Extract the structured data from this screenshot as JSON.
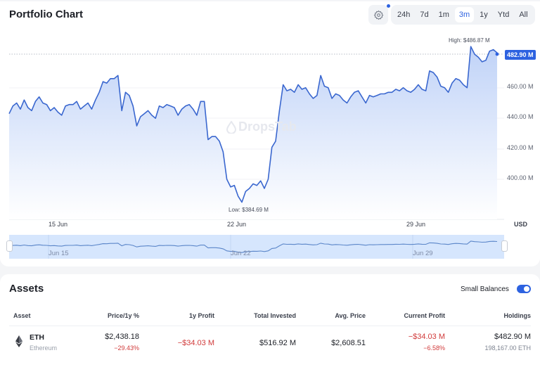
{
  "chart_card": {
    "title": "Portfolio Chart",
    "settings_icon": "gear-icon",
    "ranges": [
      "24h",
      "7d",
      "1m",
      "3m",
      "1y",
      "Ytd",
      "All"
    ],
    "active_range": "3m",
    "watermark": "DropsTab",
    "currency": "USD",
    "current_value_tag": "482.90 M",
    "high_label": "High: $486.87 M",
    "low_label": "Low: $384.69 M",
    "navigator_labels": [
      "Jun 15",
      "Jun 22",
      "Jun 29"
    ]
  },
  "chart_data": {
    "type": "area",
    "title": "Portfolio Chart",
    "xlabel": "",
    "ylabel": "USD",
    "x_tick_labels": [
      "15 Jun",
      "22 Jun",
      "29 Jun"
    ],
    "y_tick_labels": [
      "400.00 M",
      "420.00 M",
      "440.00 M",
      "460.00 M"
    ],
    "ylim": [
      380,
      490
    ],
    "grid": true,
    "legend": "none",
    "annotations": [
      "High: $486.87 M",
      "Low: $384.69 M",
      "482.90 M"
    ],
    "series": [
      {
        "name": "Portfolio value (M USD)",
        "x_approx_days": "≈ 11 Jun – 2 Jul",
        "values": [
          443,
          448,
          450,
          446,
          452,
          447,
          445,
          451,
          454,
          450,
          449,
          445,
          447,
          444,
          442,
          448,
          449,
          449,
          451,
          446,
          448,
          450,
          446,
          452,
          457,
          464,
          463,
          466,
          466,
          468,
          445,
          457,
          455,
          448,
          435,
          441,
          443,
          445,
          442,
          440,
          448,
          447,
          449,
          448,
          447,
          442,
          446,
          448,
          449,
          446,
          442,
          451,
          451,
          426,
          428,
          428,
          425,
          418,
          400,
          395,
          396,
          389,
          385,
          392,
          394,
          397,
          396,
          399,
          394,
          400,
          421,
          425,
          445,
          462,
          458,
          459,
          457,
          462,
          459,
          460,
          456,
          453,
          455,
          468,
          461,
          460,
          453,
          456,
          455,
          452,
          450,
          454,
          457,
          458,
          454,
          450,
          455,
          454,
          455,
          456,
          456,
          457,
          457,
          459,
          458,
          460,
          458,
          457,
          459,
          462,
          459,
          458,
          471,
          470,
          467,
          461,
          460,
          457,
          463,
          466,
          465,
          462,
          460,
          487,
          482,
          480,
          477,
          478,
          484,
          485,
          482.9
        ]
      }
    ]
  },
  "assets_card": {
    "title": "Assets",
    "small_balances_label": "Small Balances",
    "small_balances_enabled": true,
    "columns": [
      "Asset",
      "Price/1y %",
      "1y Profit",
      "Total Invested",
      "Avg. Price",
      "Current Profit",
      "Holdings"
    ],
    "rows": [
      {
        "symbol": "ETH",
        "name": "Ethereum",
        "icon": "ethereum-icon",
        "price": "$2,438.18",
        "change_1y": "−29.43%",
        "profit_1y": "−$34.03 M",
        "total_invested": "$516.92 M",
        "avg_price": "$2,608.51",
        "current_profit": "−$34.03 M",
        "current_profit_pct": "−6.58%",
        "holdings_value": "$482.90 M",
        "holdings_amount": "198,167.00 ETH"
      }
    ]
  },
  "colors": {
    "accent": "#2d62e0",
    "line": "#3a67cf",
    "negative": "#d13a3a",
    "navigator_fill": "#d6e6fd"
  }
}
